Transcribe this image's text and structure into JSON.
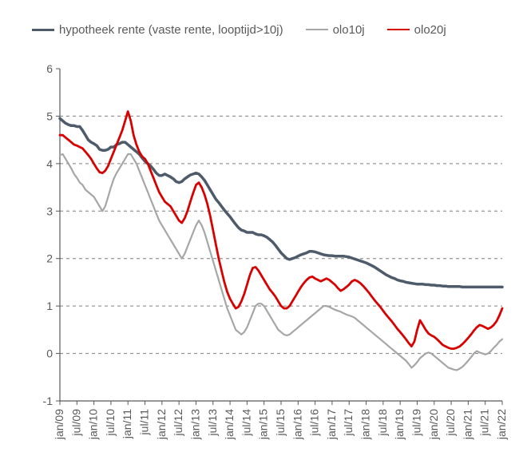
{
  "chart": {
    "type": "line",
    "background_color": "#ffffff",
    "grid_color": "#7f7f7f",
    "grid_dash": "4 4",
    "axis_color": "#595959",
    "label_color": "#595959",
    "label_fontsize": 14,
    "y": {
      "min": -1,
      "max": 6,
      "ticks": [
        -1,
        0,
        1,
        2,
        3,
        4,
        5,
        6
      ]
    },
    "x": {
      "labels": [
        "jan/09",
        "jul/09",
        "jan/10",
        "jul/10",
        "jan/11",
        "jul/11",
        "jan/12",
        "jul/12",
        "jan/13",
        "jul/13",
        "jan/14",
        "jul/14",
        "jan/15",
        "jul/15",
        "jan/16",
        "jul/16",
        "jan/17",
        "jul/17",
        "jan/18",
        "jul/18",
        "jan/19",
        "jul/19",
        "jan/20",
        "jul/20",
        "jan/21",
        "jul/21",
        "jan/22"
      ],
      "count": 27
    },
    "legend": [
      {
        "key": "hypotheek",
        "label": "hypotheek rente (vaste rente, looptijd>10j)",
        "color": "#4d5b6a",
        "width": 3.5
      },
      {
        "key": "olo10j",
        "label": "olo10j",
        "color": "#a6a6a6",
        "width": 2.2
      },
      {
        "key": "olo20j",
        "label": "olo20j",
        "color": "#d90000",
        "width": 2.8
      }
    ],
    "series": {
      "hypotheek": {
        "color": "#4d5b6a",
        "width": 3.5,
        "points": [
          4.95,
          4.9,
          4.85,
          4.82,
          4.8,
          4.8,
          4.78,
          4.78,
          4.7,
          4.6,
          4.5,
          4.45,
          4.42,
          4.38,
          4.3,
          4.28,
          4.28,
          4.3,
          4.35,
          4.35,
          4.4,
          4.42,
          4.45,
          4.45,
          4.4,
          4.35,
          4.3,
          4.25,
          4.2,
          4.12,
          4.05,
          4.0,
          3.95,
          3.88,
          3.8,
          3.75,
          3.75,
          3.78,
          3.75,
          3.72,
          3.68,
          3.62,
          3.6,
          3.62,
          3.68,
          3.72,
          3.76,
          3.78,
          3.8,
          3.78,
          3.72,
          3.65,
          3.55,
          3.45,
          3.35,
          3.25,
          3.18,
          3.1,
          3.02,
          2.95,
          2.88,
          2.8,
          2.72,
          2.65,
          2.6,
          2.58,
          2.55,
          2.55,
          2.55,
          2.52,
          2.5,
          2.5,
          2.48,
          2.45,
          2.4,
          2.35,
          2.28,
          2.2,
          2.12,
          2.06,
          2.0,
          1.98,
          2.0,
          2.02,
          2.05,
          2.08,
          2.1,
          2.12,
          2.15,
          2.15,
          2.14,
          2.12,
          2.1,
          2.08,
          2.07,
          2.06,
          2.06,
          2.05,
          2.05,
          2.05,
          2.05,
          2.04,
          2.03,
          2.01,
          1.99,
          1.97,
          1.95,
          1.93,
          1.91,
          1.88,
          1.85,
          1.82,
          1.78,
          1.74,
          1.7,
          1.66,
          1.63,
          1.6,
          1.58,
          1.55,
          1.53,
          1.52,
          1.5,
          1.49,
          1.48,
          1.47,
          1.46,
          1.46,
          1.46,
          1.45,
          1.45,
          1.44,
          1.44,
          1.43,
          1.43,
          1.42,
          1.42,
          1.41,
          1.41,
          1.41,
          1.41,
          1.41,
          1.4,
          1.4,
          1.4,
          1.4,
          1.4,
          1.4,
          1.4,
          1.4,
          1.4,
          1.4,
          1.4,
          1.4,
          1.4,
          1.4,
          1.4
        ]
      },
      "olo10j": {
        "color": "#a6a6a6",
        "width": 2.2,
        "points": [
          4.18,
          4.2,
          4.1,
          4.0,
          3.9,
          3.78,
          3.7,
          3.6,
          3.55,
          3.45,
          3.4,
          3.35,
          3.3,
          3.2,
          3.1,
          3.0,
          3.1,
          3.3,
          3.5,
          3.68,
          3.8,
          3.9,
          4.0,
          4.1,
          4.2,
          4.2,
          4.1,
          4.0,
          3.85,
          3.7,
          3.55,
          3.4,
          3.25,
          3.1,
          2.95,
          2.8,
          2.7,
          2.6,
          2.5,
          2.4,
          2.3,
          2.2,
          2.1,
          2.0,
          2.1,
          2.25,
          2.4,
          2.55,
          2.7,
          2.8,
          2.7,
          2.55,
          2.35,
          2.15,
          1.95,
          1.75,
          1.55,
          1.35,
          1.15,
          0.95,
          0.8,
          0.65,
          0.5,
          0.45,
          0.4,
          0.45,
          0.55,
          0.7,
          0.85,
          1.0,
          1.05,
          1.05,
          1.0,
          0.9,
          0.8,
          0.7,
          0.6,
          0.5,
          0.45,
          0.4,
          0.38,
          0.4,
          0.45,
          0.5,
          0.55,
          0.6,
          0.65,
          0.7,
          0.75,
          0.8,
          0.85,
          0.9,
          0.95,
          1.0,
          1.0,
          0.98,
          0.95,
          0.92,
          0.9,
          0.88,
          0.85,
          0.82,
          0.8,
          0.78,
          0.75,
          0.7,
          0.65,
          0.6,
          0.55,
          0.5,
          0.45,
          0.4,
          0.35,
          0.3,
          0.25,
          0.2,
          0.15,
          0.1,
          0.05,
          0.0,
          -0.05,
          -0.1,
          -0.15,
          -0.22,
          -0.3,
          -0.25,
          -0.18,
          -0.1,
          -0.05,
          0.0,
          0.02,
          0.0,
          -0.05,
          -0.1,
          -0.15,
          -0.2,
          -0.25,
          -0.3,
          -0.32,
          -0.34,
          -0.35,
          -0.32,
          -0.28,
          -0.22,
          -0.15,
          -0.08,
          0.0,
          0.05,
          0.02,
          0.0,
          -0.02,
          0.0,
          0.05,
          0.12,
          0.18,
          0.25,
          0.3
        ]
      },
      "olo20j": {
        "color": "#d90000",
        "width": 2.8,
        "points": [
          4.6,
          4.6,
          4.55,
          4.5,
          4.45,
          4.4,
          4.38,
          4.35,
          4.32,
          4.25,
          4.18,
          4.1,
          4.0,
          3.9,
          3.82,
          3.8,
          3.85,
          3.95,
          4.1,
          4.25,
          4.4,
          4.55,
          4.7,
          4.9,
          5.1,
          4.9,
          4.6,
          4.4,
          4.25,
          4.15,
          4.1,
          4.0,
          3.85,
          3.7,
          3.55,
          3.4,
          3.3,
          3.2,
          3.15,
          3.1,
          3.0,
          2.9,
          2.8,
          2.75,
          2.85,
          3.0,
          3.2,
          3.38,
          3.55,
          3.6,
          3.5,
          3.35,
          3.15,
          2.9,
          2.6,
          2.3,
          2.0,
          1.75,
          1.5,
          1.3,
          1.15,
          1.05,
          0.95,
          0.98,
          1.1,
          1.25,
          1.45,
          1.65,
          1.8,
          1.82,
          1.75,
          1.65,
          1.55,
          1.45,
          1.35,
          1.28,
          1.2,
          1.1,
          1.0,
          0.95,
          0.95,
          1.0,
          1.1,
          1.2,
          1.3,
          1.4,
          1.48,
          1.55,
          1.6,
          1.62,
          1.58,
          1.55,
          1.52,
          1.55,
          1.58,
          1.55,
          1.5,
          1.45,
          1.38,
          1.32,
          1.35,
          1.4,
          1.45,
          1.52,
          1.55,
          1.52,
          1.48,
          1.42,
          1.35,
          1.28,
          1.2,
          1.12,
          1.05,
          0.98,
          0.9,
          0.82,
          0.75,
          0.68,
          0.6,
          0.52,
          0.45,
          0.38,
          0.3,
          0.22,
          0.15,
          0.25,
          0.5,
          0.7,
          0.6,
          0.5,
          0.42,
          0.38,
          0.35,
          0.3,
          0.24,
          0.18,
          0.15,
          0.12,
          0.1,
          0.1,
          0.12,
          0.15,
          0.2,
          0.26,
          0.33,
          0.4,
          0.48,
          0.55,
          0.6,
          0.58,
          0.55,
          0.52,
          0.55,
          0.6,
          0.68,
          0.8,
          0.95
        ]
      }
    }
  }
}
